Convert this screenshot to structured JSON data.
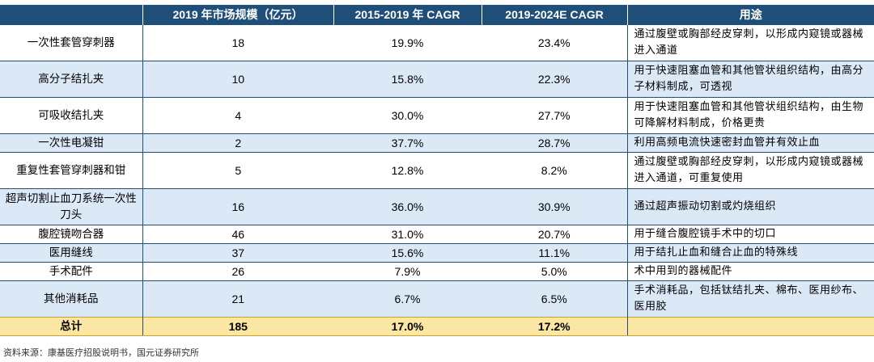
{
  "headers": [
    "",
    "2019 年市场规模（亿元）",
    "2015-2019 年 CAGR",
    "2019-2024E CAGR",
    "用途"
  ],
  "rows": [
    {
      "name": "一次性套管穿刺器",
      "size": "18",
      "cagr1": "19.9%",
      "cagr2": "23.4%",
      "use": "通过腹壁或胸部经皮穿刺，以形成内窥镜或器械进入通道"
    },
    {
      "name": "高分子结扎夹",
      "size": "10",
      "cagr1": "15.8%",
      "cagr2": "22.3%",
      "use": "用于快速阻塞血管和其他管状组织结构，由高分子材料制成，可透视"
    },
    {
      "name": "可吸收结扎夹",
      "size": "4",
      "cagr1": "30.0%",
      "cagr2": "27.7%",
      "use": "用于快速阻塞血管和其他管状组织结构，由生物可降解材料制成，价格更贵"
    },
    {
      "name": "一次性电凝钳",
      "size": "2",
      "cagr1": "37.7%",
      "cagr2": "28.7%",
      "use": "利用高频电流快速密封血管并有效止血"
    },
    {
      "name": "重复性套管穿刺器和钳",
      "size": "5",
      "cagr1": "12.8%",
      "cagr2": "8.2%",
      "use": "通过腹壁或胸部经皮穿刺，以形成内窥镜或器械进入通道，可重复使用"
    },
    {
      "name": "超声切割止血刀系统一次性刀头",
      "size": "16",
      "cagr1": "36.0%",
      "cagr2": "30.9%",
      "use": "通过超声振动切割或灼烧组织"
    },
    {
      "name": "腹腔镜吻合器",
      "size": "46",
      "cagr1": "31.0%",
      "cagr2": "20.7%",
      "use": "用于缝合腹腔镜手术中的切口"
    },
    {
      "name": "医用缝线",
      "size": "37",
      "cagr1": "15.6%",
      "cagr2": "11.1%",
      "use": "用于结扎止血和缝合止血的特殊线"
    },
    {
      "name": "手术配件",
      "size": "26",
      "cagr1": "7.9%",
      "cagr2": "5.0%",
      "use": "术中用到的器械配件"
    },
    {
      "name": "其他消耗品",
      "size": "21",
      "cagr1": "6.7%",
      "cagr2": "6.5%",
      "use": "手术消耗品，包括钛结扎夹、棉布、医用纱布、医用胶"
    }
  ],
  "total": {
    "name": "总计",
    "size": "185",
    "cagr1": "17.0%",
    "cagr2": "17.2%",
    "use": ""
  },
  "source": "资料来源：康基医疗招股说明书，国元证券研究所",
  "colors": {
    "header_bg": "#1f4e79",
    "stripe": "#dbe9f7",
    "total_bg": "#fbe6a3"
  }
}
